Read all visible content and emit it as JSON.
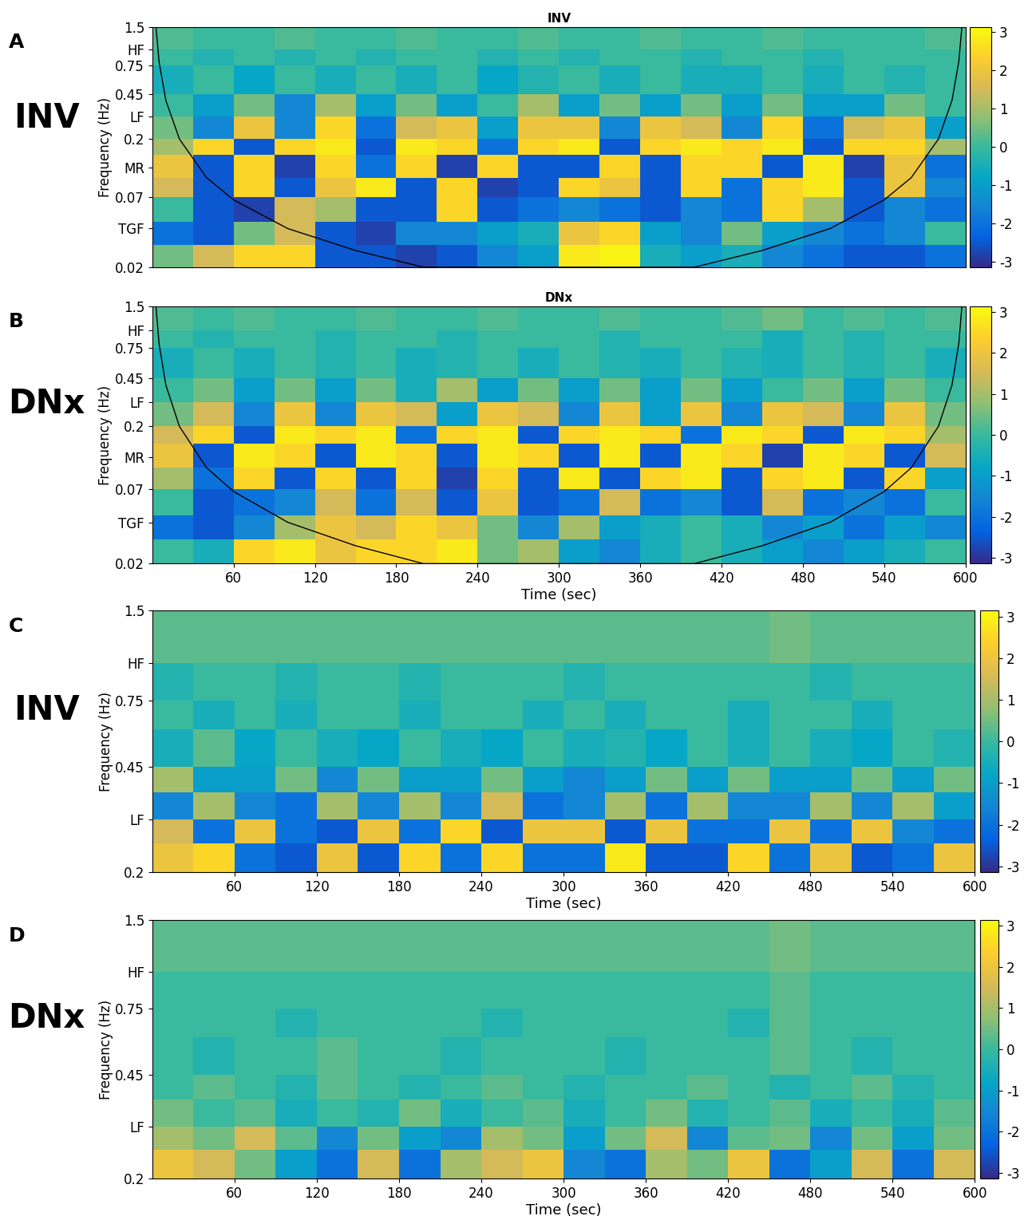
{
  "chart_data": [
    {
      "type": "heatmap",
      "title": "INV",
      "annotations": [
        "A",
        "INV"
      ],
      "y_label": "Frequency (Hz)",
      "tick_labels": "y",
      "log": "y",
      "xlim": [
        0,
        600
      ],
      "ylim": [
        0.02,
        1.5
      ],
      "yticks": [
        0.02,
        {
          "value": 0.04,
          "label": "TGF"
        },
        0.07,
        {
          "value": 0.12,
          "label": "MR"
        },
        0.2,
        {
          "value": 0.3,
          "label": "LF"
        },
        0.45,
        0.75,
        {
          "value": 1.0,
          "label": "HF"
        },
        1.5
      ],
      "x": [
        0,
        30,
        60,
        90,
        120,
        150,
        180,
        210,
        240,
        270,
        300,
        330,
        360,
        390,
        420,
        450,
        480,
        510,
        540,
        570,
        600
      ],
      "y": [
        0.02,
        0.03,
        0.045,
        0.07,
        0.1,
        0.15,
        0.2,
        0.3,
        0.45,
        0.75,
        1.0,
        1.5
      ],
      "cells": [
        [
          0.5,
          1.5,
          2.5,
          2.5,
          -2.5,
          -2.5,
          -2.8,
          -2.5,
          -1.5,
          -1,
          2.8,
          3,
          -0.5,
          -1,
          -0.5,
          -1.5,
          -2,
          -2.5,
          -2.5,
          -2
        ],
        [
          -2,
          -2.5,
          0.5,
          1.5,
          -2.5,
          -2.8,
          -1.5,
          -1.5,
          -1,
          -0.5,
          2,
          2.5,
          -1,
          -1.5,
          0.5,
          -1,
          -1.5,
          -2,
          -1.5,
          0
        ],
        [
          0,
          -2.5,
          -2.8,
          1.5,
          1,
          -2.5,
          -2.5,
          2.5,
          -2.5,
          -2,
          -1.5,
          -2,
          -2.5,
          -1.5,
          -2,
          2.5,
          1,
          -2.5,
          -1.5,
          -2
        ],
        [
          1.5,
          -2.5,
          2.5,
          -2.5,
          2,
          2.8,
          -2.5,
          2.5,
          -2.8,
          -2.5,
          2.5,
          2,
          -2.5,
          2.5,
          -2,
          2.5,
          2.8,
          -2.5,
          2,
          -1.5
        ],
        [
          2,
          -2.5,
          2.5,
          -2.8,
          2.5,
          -2,
          2.5,
          -2.8,
          2.5,
          -2.5,
          -2.5,
          2.5,
          -2.5,
          2.5,
          2.5,
          -2.5,
          2.8,
          -2.8,
          2,
          -2
        ],
        [
          1,
          2.5,
          -2.5,
          2.5,
          2.8,
          -2.5,
          2.8,
          2.5,
          -2,
          2.5,
          2.8,
          -2.5,
          2.5,
          2.8,
          2.5,
          2.8,
          -2.5,
          2.5,
          2.5,
          1
        ],
        [
          0.5,
          -1.5,
          2,
          -1.5,
          2.5,
          -2,
          1.5,
          2,
          -1,
          2,
          2,
          -1.5,
          2,
          1.5,
          -1.5,
          2.5,
          -2,
          1.5,
          2,
          -1
        ],
        [
          0,
          -1,
          0.5,
          -1.5,
          1,
          -1,
          0.5,
          -1,
          0,
          1,
          -1,
          0.5,
          -1,
          0.5,
          -1,
          0.5,
          -1,
          -1,
          0.5,
          0
        ],
        [
          -0.5,
          0,
          -0.8,
          0,
          -0.5,
          0,
          -0.5,
          0,
          -0.8,
          -0.3,
          0,
          -0.5,
          0,
          -0.5,
          -0.5,
          0,
          -0.5,
          0,
          -0.3,
          0
        ],
        [
          0,
          -0.3,
          0,
          -0.3,
          0,
          -0.3,
          0,
          0,
          -0.3,
          0,
          -0.3,
          0,
          0,
          -0.3,
          0,
          0,
          -0.3,
          0,
          0,
          0
        ],
        [
          0.2,
          0,
          0,
          0.2,
          0,
          0,
          0.2,
          0,
          0,
          0.2,
          0,
          0,
          0.2,
          0,
          0,
          0.2,
          0,
          0,
          0,
          0.2
        ]
      ],
      "line": {
        "x": [
          2.7,
          5,
          10,
          20,
          40,
          60,
          100,
          150,
          200,
          400,
          450,
          500,
          540,
          560,
          580,
          590,
          595,
          597.3
        ],
        "values": [
          1.5,
          0.8,
          0.4,
          0.2,
          0.1,
          0.067,
          0.04,
          0.027,
          0.02,
          0.02,
          0.027,
          0.04,
          0.067,
          0.1,
          0.2,
          0.4,
          0.8,
          1.5
        ],
        "color": "#000000"
      },
      "colorbar": {
        "range": [
          -3.14,
          3.14
        ],
        "ticks": [
          -3,
          -2,
          -1,
          0,
          1,
          2,
          3
        ]
      }
    },
    {
      "type": "heatmap",
      "title": "DNx",
      "annotations": [
        "B",
        "DNx"
      ],
      "x_label": "Time (sec)",
      "y_label": "Frequency (Hz)",
      "log": "y",
      "xlim": [
        0,
        600
      ],
      "ylim": [
        0.02,
        1.5
      ],
      "xticks": [
        60,
        120,
        180,
        240,
        300,
        360,
        420,
        480,
        540,
        600
      ],
      "yticks": [
        0.02,
        {
          "value": 0.04,
          "label": "TGF"
        },
        0.07,
        {
          "value": 0.12,
          "label": "MR"
        },
        0.2,
        {
          "value": 0.3,
          "label": "LF"
        },
        0.45,
        0.75,
        {
          "value": 1.0,
          "label": "HF"
        },
        1.5
      ],
      "x": [
        0,
        30,
        60,
        90,
        120,
        150,
        180,
        210,
        240,
        270,
        300,
        330,
        360,
        390,
        420,
        450,
        480,
        510,
        540,
        570,
        600
      ],
      "y": [
        0.02,
        0.03,
        0.045,
        0.07,
        0.1,
        0.15,
        0.2,
        0.3,
        0.45,
        0.75,
        1.0,
        1.5
      ],
      "cells": [
        [
          0,
          -0.5,
          2.5,
          2.8,
          2,
          2.5,
          2.5,
          2.8,
          0.5,
          1,
          -1,
          -1.5,
          -0.5,
          0,
          -0.5,
          -1,
          -1.5,
          -1,
          -0.5,
          0
        ],
        [
          -2,
          -2.5,
          -1.5,
          1,
          2,
          1.5,
          2.5,
          2,
          0.5,
          -1.5,
          1,
          -1,
          -0.5,
          0,
          -0.5,
          -1.5,
          -1,
          -2,
          -1,
          -1.5
        ],
        [
          0,
          -2.5,
          -2,
          -1.5,
          1.5,
          -2,
          1.5,
          -2.5,
          2,
          -2.5,
          -2,
          1.5,
          -2,
          -1.5,
          -2.5,
          1.5,
          -2,
          -1.5,
          -2,
          0
        ],
        [
          1,
          -2,
          2.5,
          -2.5,
          2.5,
          -2.5,
          2.5,
          -2.8,
          2.5,
          -2.5,
          2.8,
          -2.5,
          2.5,
          2.8,
          -2.5,
          2.5,
          2.8,
          -2.5,
          2.5,
          -1
        ],
        [
          2,
          -2.5,
          2.8,
          2.5,
          -2.5,
          2.8,
          2.5,
          -2.5,
          2.8,
          2.5,
          -2.5,
          2.8,
          -2.5,
          2.8,
          2.5,
          -2.8,
          2.8,
          2.5,
          -2.5,
          1.5
        ],
        [
          1.5,
          2.5,
          -2.5,
          2.8,
          2.5,
          2.8,
          -2,
          2.5,
          2.8,
          -2.5,
          2.5,
          2.8,
          2.5,
          -2,
          2.8,
          2.5,
          -2.5,
          2.8,
          2.5,
          1
        ],
        [
          0.5,
          1.5,
          -1.5,
          2,
          -1.5,
          2,
          1.5,
          -1,
          2,
          1.5,
          -1.5,
          2,
          -1,
          2,
          -1.5,
          2,
          1.5,
          -1.5,
          2,
          0.5
        ],
        [
          0,
          0.5,
          -1,
          0.5,
          -1,
          0.5,
          -0.5,
          1,
          -1,
          0.5,
          -1,
          0.5,
          -1,
          0.5,
          -1,
          0,
          0.5,
          -1,
          0.5,
          0
        ],
        [
          -0.5,
          0,
          -0.5,
          0,
          -0.3,
          0,
          -0.5,
          -0.3,
          0,
          -0.5,
          0,
          -0.3,
          -0.5,
          0,
          -0.3,
          -0.5,
          0,
          -0.3,
          0,
          -0.5
        ],
        [
          0,
          -0.3,
          0,
          0,
          -0.3,
          0,
          0,
          -0.3,
          0,
          0,
          0,
          -0.3,
          0,
          0,
          0,
          -0.5,
          0,
          -0.3,
          0,
          0
        ],
        [
          0.2,
          0,
          0.2,
          0,
          0,
          0.2,
          0,
          0,
          0.2,
          0,
          0,
          0.2,
          0,
          0,
          0.2,
          0.5,
          0,
          0.2,
          0,
          0.2
        ]
      ],
      "line": {
        "x": [
          2.7,
          5,
          10,
          20,
          40,
          60,
          100,
          150,
          200,
          400,
          450,
          500,
          540,
          560,
          580,
          590,
          595,
          597.3
        ],
        "values": [
          1.5,
          0.8,
          0.4,
          0.2,
          0.1,
          0.067,
          0.04,
          0.027,
          0.02,
          0.02,
          0.027,
          0.04,
          0.067,
          0.1,
          0.2,
          0.4,
          0.8,
          1.5
        ],
        "color": "#000000"
      },
      "colorbar": {
        "range": [
          -3.14,
          3.14
        ],
        "ticks": [
          -3,
          -2,
          -1,
          0,
          1,
          2,
          3
        ]
      }
    },
    {
      "type": "heatmap",
      "annotations": [
        "C",
        "INV"
      ],
      "x_label": "Time (sec)",
      "y_label": "Frequency (Hz)",
      "log": "y",
      "xlim": [
        0,
        600
      ],
      "ylim": [
        0.2,
        1.5
      ],
      "xticks": [
        60,
        120,
        180,
        240,
        300,
        360,
        420,
        480,
        540,
        600
      ],
      "yticks": [
        0.2,
        {
          "value": 0.3,
          "label": "LF"
        },
        0.45,
        0.75,
        {
          "value": 1.0,
          "label": "HF"
        },
        1.5
      ],
      "x": [
        0,
        30,
        60,
        90,
        120,
        150,
        180,
        210,
        240,
        270,
        300,
        330,
        360,
        390,
        420,
        450,
        480,
        510,
        540,
        570,
        600
      ],
      "y": [
        0.2,
        0.25,
        0.3,
        0.37,
        0.45,
        0.6,
        0.75,
        1.0,
        1.5
      ],
      "cells": [
        [
          2,
          2.5,
          -2,
          -2.5,
          2,
          -2.5,
          2.5,
          -2,
          2.5,
          -2,
          -2,
          2.8,
          -2.5,
          -2.5,
          2.5,
          -2,
          2,
          -2.5,
          -2,
          2
        ],
        [
          1.5,
          -2,
          2,
          -2,
          -2.5,
          2,
          -2,
          2.5,
          -2.5,
          2,
          2,
          -2.5,
          2,
          -2,
          -2,
          2,
          -2,
          2,
          -1.5,
          -2
        ],
        [
          -1.5,
          1,
          -1.5,
          -2,
          1,
          -1.5,
          1,
          -1.5,
          1.5,
          -2,
          -1.5,
          1,
          -2,
          1,
          -1.5,
          -1.5,
          1,
          -1.5,
          1,
          -1
        ],
        [
          1,
          -1,
          -1,
          0.5,
          -1.5,
          0.5,
          -1,
          -1,
          0.5,
          -1,
          -1.5,
          -1,
          0.5,
          -1,
          0.5,
          -1,
          -1,
          0.5,
          -1,
          0.5
        ],
        [
          -0.5,
          0.3,
          -0.8,
          0,
          -0.5,
          -0.8,
          0,
          -0.5,
          -0.8,
          0,
          -0.5,
          -0.3,
          -0.8,
          0,
          -0.5,
          0,
          -0.5,
          -0.8,
          0,
          -0.3
        ],
        [
          0,
          -0.5,
          0,
          -0.5,
          0,
          0,
          -0.5,
          0,
          0,
          -0.5,
          0,
          -0.5,
          0,
          0,
          -0.5,
          0,
          0,
          -0.5,
          0,
          0
        ],
        [
          -0.3,
          0,
          0,
          -0.3,
          0,
          0,
          -0.3,
          0,
          0,
          0,
          -0.3,
          0,
          0,
          0,
          0,
          0,
          -0.3,
          0,
          0,
          0
        ],
        [
          0.3,
          0.3,
          0.3,
          0.3,
          0.3,
          0.3,
          0.3,
          0.3,
          0.3,
          0.3,
          0.3,
          0.3,
          0.3,
          0.3,
          0.3,
          0.5,
          0.3,
          0.3,
          0.3,
          0.3
        ]
      ],
      "colorbar": {
        "range": [
          -3.14,
          3.14
        ],
        "ticks": [
          -3,
          -2,
          -1,
          0,
          1,
          2,
          3
        ]
      }
    },
    {
      "type": "heatmap",
      "annotations": [
        "D",
        "DNx"
      ],
      "x_label": "Time (sec)",
      "y_label": "Frequency (Hz)",
      "log": "y",
      "xlim": [
        0,
        600
      ],
      "ylim": [
        0.2,
        1.5
      ],
      "xticks": [
        60,
        120,
        180,
        240,
        300,
        360,
        420,
        480,
        540,
        600
      ],
      "yticks": [
        0.2,
        {
          "value": 0.3,
          "label": "LF"
        },
        0.45,
        0.75,
        {
          "value": 1.0,
          "label": "HF"
        },
        1.5
      ],
      "x": [
        0,
        30,
        60,
        90,
        120,
        150,
        180,
        210,
        240,
        270,
        300,
        330,
        360,
        390,
        420,
        450,
        480,
        510,
        540,
        570,
        600
      ],
      "y": [
        0.2,
        0.25,
        0.3,
        0.37,
        0.45,
        0.6,
        0.75,
        1.0,
        1.5
      ],
      "cells": [
        [
          2,
          1.5,
          0.5,
          -1,
          -2,
          1.5,
          -2,
          1,
          1.5,
          2,
          -1.5,
          -2,
          1,
          0.5,
          2,
          -2,
          -1,
          1.5,
          -2,
          1.5
        ],
        [
          1,
          0.5,
          1.5,
          0.3,
          -1.5,
          0.5,
          -1,
          -1.5,
          1,
          0.5,
          -1,
          0.5,
          1.5,
          -1.5,
          0.3,
          0.5,
          -1.5,
          0.5,
          -1,
          0.5
        ],
        [
          0.5,
          0,
          0.3,
          -0.5,
          0,
          -0.3,
          0.5,
          -0.5,
          0,
          0.3,
          -0.5,
          0,
          0.5,
          -0.3,
          0,
          0.3,
          -0.5,
          0,
          -0.5,
          0.3
        ],
        [
          0,
          0.3,
          0,
          -0.3,
          0.3,
          0,
          -0.3,
          0,
          0.3,
          0,
          -0.3,
          0,
          0,
          0.3,
          0,
          -0.3,
          0,
          0.3,
          -0.3,
          0
        ],
        [
          0,
          -0.3,
          0,
          0,
          0.3,
          0,
          0,
          -0.3,
          0,
          0,
          0,
          -0.3,
          0,
          0,
          0,
          0.3,
          0,
          -0.3,
          0,
          0
        ],
        [
          0,
          0,
          0,
          -0.3,
          0,
          0,
          0,
          0,
          -0.3,
          0,
          0,
          0,
          0,
          0,
          -0.3,
          0.3,
          0,
          0,
          0,
          0
        ],
        [
          0,
          0,
          0,
          0,
          0,
          0,
          0,
          0,
          0,
          0,
          0,
          0,
          0,
          0,
          0,
          0.3,
          0,
          0,
          0,
          0
        ],
        [
          0.3,
          0.3,
          0.3,
          0.3,
          0.3,
          0.3,
          0.3,
          0.3,
          0.3,
          0.3,
          0.3,
          0.3,
          0.3,
          0.3,
          0.3,
          0.5,
          0.3,
          0.3,
          0.3,
          0.3
        ]
      ],
      "colorbar": {
        "range": [
          -3.14,
          3.14
        ],
        "ticks": [
          -3,
          -2,
          -1,
          0,
          1,
          2,
          3
        ]
      }
    }
  ]
}
